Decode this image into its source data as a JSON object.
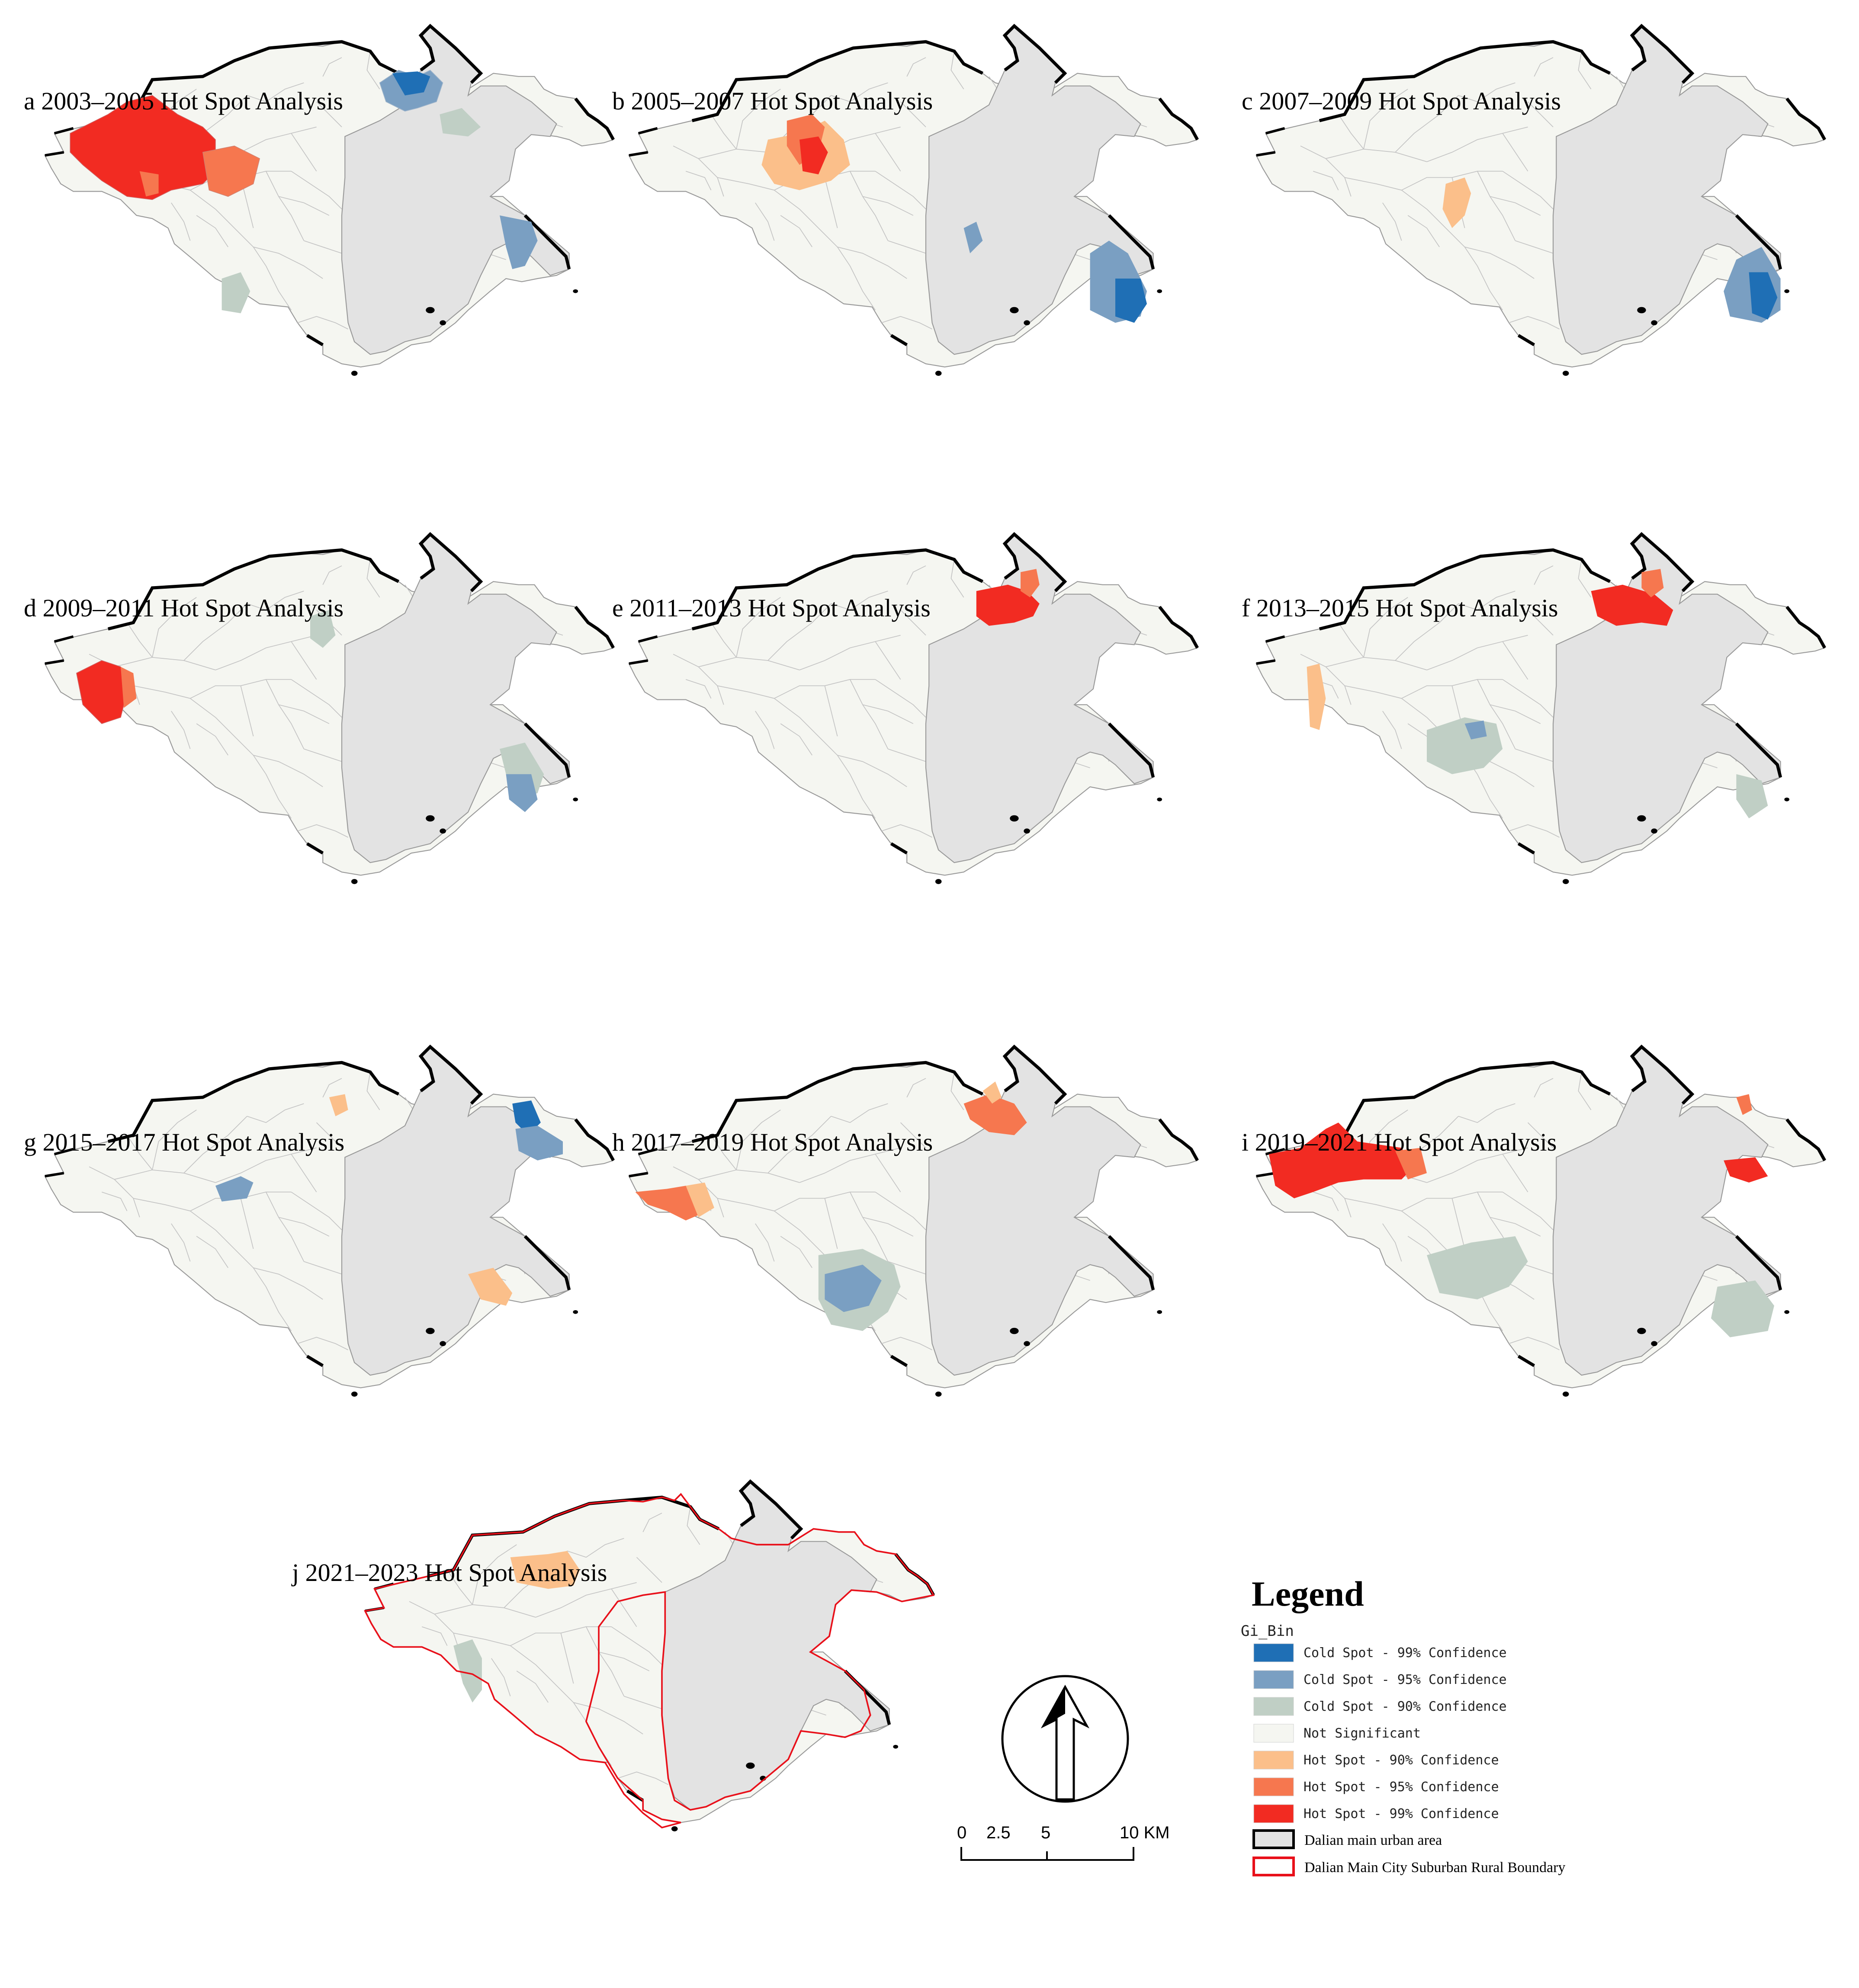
{
  "figure": {
    "panels": [
      {
        "id": "a",
        "title": "a 2003–2005 Hot Spot Analysis"
      },
      {
        "id": "b",
        "title": "b 2005–2007 Hot Spot Analysis"
      },
      {
        "id": "c",
        "title": "c 2007–2009 Hot Spot Analysis"
      },
      {
        "id": "d",
        "title": "d 2009–2011 Hot Spot Analysis"
      },
      {
        "id": "e",
        "title": "e 2011–2013 Hot Spot Analysis"
      },
      {
        "id": "f",
        "title": "f 2013–2015 Hot Spot Analysis"
      },
      {
        "id": "g",
        "title": "g 2015–2017 Hot Spot Analysis"
      },
      {
        "id": "h",
        "title": "h 2017–2019 Hot Spot Analysis"
      },
      {
        "id": "i",
        "title": "i 2019–2021 Hot Spot Analysis"
      },
      {
        "id": "j",
        "title": "j 2021–2023 Hot Spot Analysis"
      }
    ]
  },
  "legend": {
    "title": "Legend",
    "field": "Gi_Bin",
    "items": [
      {
        "label": "Cold Spot - 99% Confidence",
        "color": "#1f6fb5"
      },
      {
        "label": "Cold Spot - 95% Confidence",
        "color": "#7a9fc2"
      },
      {
        "label": "Cold Spot - 90% Confidence",
        "color": "#c0cfc5"
      },
      {
        "label": "Not Significant",
        "color": "#f5f6f1"
      },
      {
        "label": "Hot Spot - 90% Confidence",
        "color": "#fbbf8a"
      },
      {
        "label": "Hot Spot - 95% Confidence",
        "color": "#f6774f"
      },
      {
        "label": "Hot Spot - 99% Confidence",
        "color": "#f22b22"
      }
    ],
    "urban_label": "Dalian main urban area",
    "boundary_label": "Dalian Main City Suburban Rural Boundary",
    "urban_color": "#e3e3e3",
    "boundary_color": "#e8101a"
  },
  "scale_bar": {
    "labels": [
      "0",
      "2.5",
      "5",
      "10 KM"
    ]
  },
  "north_arrow": {
    "icon": "north-arrow-icon"
  }
}
